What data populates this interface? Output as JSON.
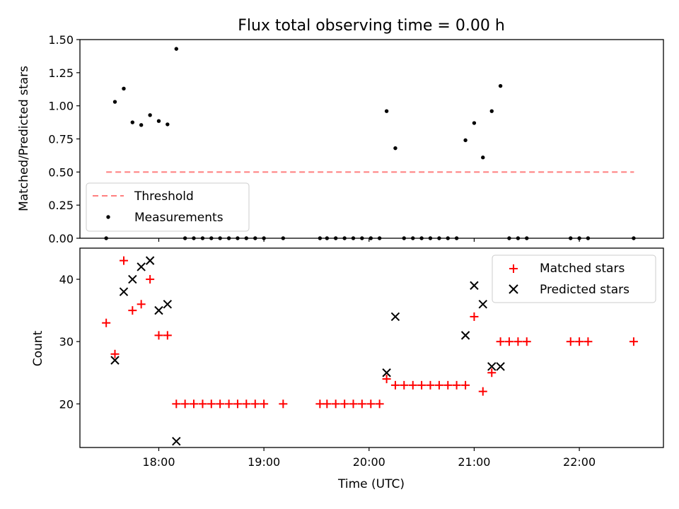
{
  "title": "Flux total observing time = 0.00 h",
  "colors": {
    "threshold": "#ff7f7f",
    "measurements": "#000000",
    "matched": "#ff0000",
    "predicted": "#000000"
  },
  "chart_data": [
    {
      "type": "scatter",
      "ylabel": "Matched/Predicted stars",
      "ylim": [
        0,
        1.5
      ],
      "yticks": [
        "0.00",
        "0.25",
        "0.50",
        "0.75",
        "1.00",
        "1.25",
        "1.50"
      ],
      "x_range_hours": [
        17.25,
        22.8
      ],
      "xtick_hours": [
        18,
        19,
        20,
        21,
        22
      ],
      "legend": {
        "position": "lower-left",
        "entries": [
          "Threshold",
          "Measurements"
        ]
      },
      "threshold": {
        "name": "Threshold",
        "value": 0.5,
        "x_hours": [
          17.5,
          22.52
        ]
      },
      "series": [
        {
          "name": "Measurements",
          "x_hours": [
            17.5,
            17.583,
            17.667,
            17.75,
            17.833,
            17.917,
            18.0,
            18.083,
            18.167,
            18.25,
            18.333,
            18.417,
            18.5,
            18.583,
            18.667,
            18.75,
            18.833,
            18.917,
            19.0,
            19.183,
            19.533,
            19.6,
            19.683,
            19.767,
            19.85,
            19.933,
            20.017,
            20.1,
            20.167,
            20.25,
            20.333,
            20.417,
            20.5,
            20.583,
            20.667,
            20.75,
            20.833,
            20.917,
            21.0,
            21.083,
            21.167,
            21.25,
            21.333,
            21.417,
            21.5,
            21.917,
            22.0,
            22.083,
            22.517
          ],
          "values": [
            0,
            1.03,
            1.13,
            0.875,
            0.855,
            0.93,
            0.885,
            0.86,
            1.43,
            0,
            0,
            0,
            0,
            0,
            0,
            0,
            0,
            0,
            0,
            0,
            0,
            0,
            0,
            0,
            0,
            0,
            0,
            0,
            0.96,
            0.68,
            0,
            0,
            0,
            0,
            0,
            0,
            0,
            0.74,
            0.87,
            0.61,
            0.96,
            1.15,
            0,
            0,
            0,
            0,
            0,
            0,
            0
          ]
        }
      ]
    },
    {
      "type": "scatter",
      "xlabel": "Time (UTC)",
      "ylabel": "Count",
      "ylim": [
        13,
        45
      ],
      "yticks": [
        "20",
        "30",
        "40"
      ],
      "x_range_hours": [
        17.25,
        22.8
      ],
      "xticks": [
        "18:00",
        "19:00",
        "20:00",
        "21:00",
        "22:00"
      ],
      "legend": {
        "position": "top-right",
        "entries": [
          "Matched stars",
          "Predicted stars"
        ]
      },
      "series": [
        {
          "name": "Matched stars",
          "marker": "+",
          "x_hours": [
            17.5,
            17.583,
            17.667,
            17.75,
            17.833,
            17.917,
            18.0,
            18.083,
            18.167,
            18.25,
            18.333,
            18.417,
            18.5,
            18.583,
            18.667,
            18.75,
            18.833,
            18.917,
            19.0,
            19.183,
            19.533,
            19.6,
            19.683,
            19.767,
            19.85,
            19.933,
            20.017,
            20.1,
            20.167,
            20.25,
            20.333,
            20.417,
            20.5,
            20.583,
            20.667,
            20.75,
            20.833,
            20.917,
            21.0,
            21.083,
            21.167,
            21.25,
            21.333,
            21.417,
            21.5,
            21.917,
            22.0,
            22.083,
            22.517
          ],
          "values": [
            33,
            28,
            43,
            35,
            36,
            40,
            31,
            31,
            20,
            20,
            20,
            20,
            20,
            20,
            20,
            20,
            20,
            20,
            20,
            20,
            20,
            20,
            20,
            20,
            20,
            20,
            20,
            20,
            24,
            23,
            23,
            23,
            23,
            23,
            23,
            23,
            23,
            23,
            34,
            22,
            25,
            30,
            30,
            30,
            30,
            30,
            30,
            30,
            30
          ]
        },
        {
          "name": "Predicted stars",
          "marker": "x",
          "x_hours": [
            17.583,
            17.667,
            17.75,
            17.833,
            17.917,
            18.0,
            18.083,
            18.167,
            20.167,
            20.25,
            20.917,
            21.0,
            21.083,
            21.167,
            21.25
          ],
          "values": [
            27,
            38,
            40,
            42,
            43,
            35,
            36,
            14,
            25,
            34,
            31,
            39,
            36,
            26,
            26
          ]
        }
      ]
    }
  ]
}
